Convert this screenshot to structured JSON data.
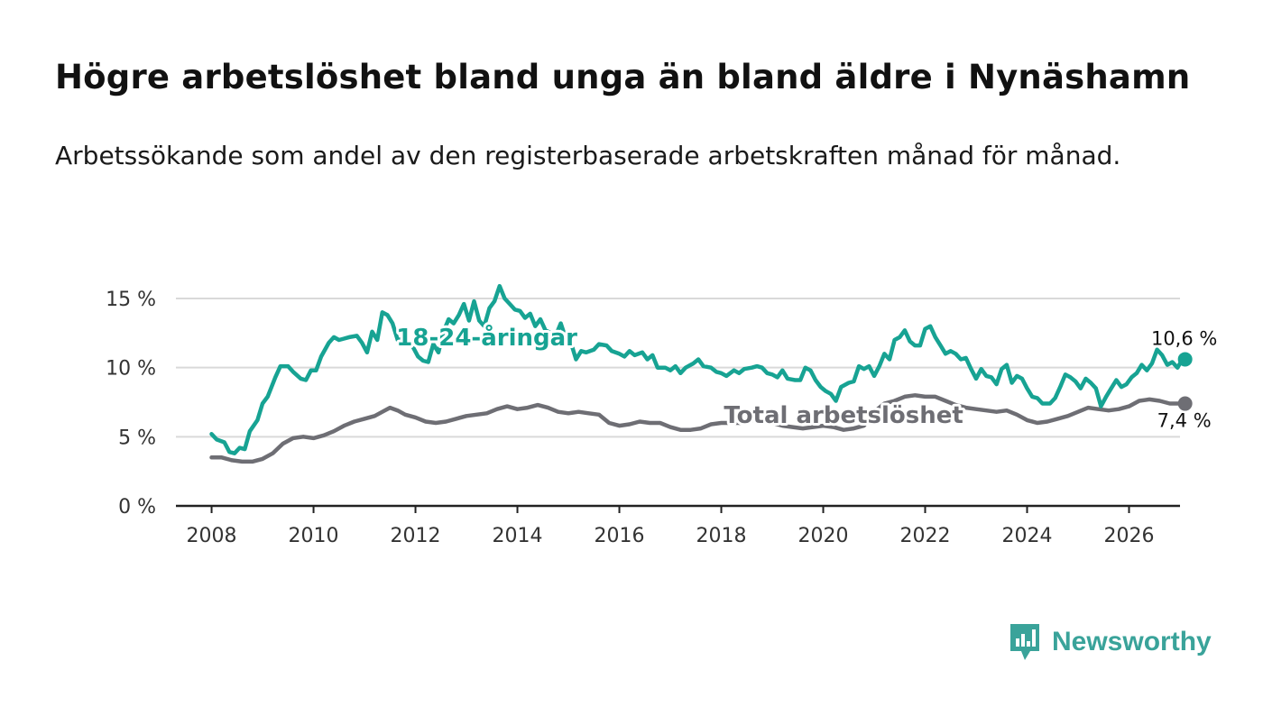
{
  "header": {
    "title": "Högre arbetslöshet bland unga än bland äldre i Nynäshamn",
    "subtitle": "Arbetssökande som andel av den registerbaserade arbetskraften månad för månad."
  },
  "brand": {
    "name": "Newsworthy",
    "icon": "newsworthy-logo-icon",
    "color": "#3aa39a"
  },
  "chart_data": {
    "type": "line",
    "title": "Högre arbetslöshet bland unga än bland äldre i Nynäshamn",
    "xlabel": "",
    "ylabel": "",
    "xlim": [
      2007.3,
      2027.0
    ],
    "ylim": [
      0,
      15
    ],
    "x_ticks": [
      2008,
      2010,
      2012,
      2014,
      2016,
      2018,
      2020,
      2022,
      2024,
      2026
    ],
    "x_tick_labels": [
      "2008",
      "2010",
      "2012",
      "2014",
      "2016",
      "2018",
      "2020",
      "2022",
      "2024",
      "2026"
    ],
    "y_ticks": [
      0,
      5,
      10,
      15
    ],
    "y_tick_labels": [
      "0 %",
      "5 %",
      "10 %",
      "15 %"
    ],
    "grid": true,
    "series": [
      {
        "name": "18-24-åringar",
        "color": "#17a393",
        "end_label": "10,6 %",
        "points": [
          [
            2008.0,
            5.2
          ],
          [
            2008.1,
            4.8
          ],
          [
            2008.25,
            4.6
          ],
          [
            2008.35,
            3.9
          ],
          [
            2008.45,
            3.8
          ],
          [
            2008.55,
            4.2
          ],
          [
            2008.65,
            4.1
          ],
          [
            2008.75,
            5.4
          ],
          [
            2008.9,
            6.2
          ],
          [
            2009.0,
            7.4
          ],
          [
            2009.1,
            7.9
          ],
          [
            2009.25,
            9.3
          ],
          [
            2009.35,
            10.1
          ],
          [
            2009.5,
            10.1
          ],
          [
            2009.6,
            9.7
          ],
          [
            2009.75,
            9.2
          ],
          [
            2009.85,
            9.1
          ],
          [
            2009.95,
            9.8
          ],
          [
            2010.05,
            9.8
          ],
          [
            2010.15,
            10.8
          ],
          [
            2010.3,
            11.8
          ],
          [
            2010.4,
            12.2
          ],
          [
            2010.5,
            12.0
          ],
          [
            2010.6,
            12.1
          ],
          [
            2010.7,
            12.2
          ],
          [
            2010.85,
            12.3
          ],
          [
            2010.95,
            11.8
          ],
          [
            2011.05,
            11.1
          ],
          [
            2011.15,
            12.6
          ],
          [
            2011.25,
            12.0
          ],
          [
            2011.35,
            14.0
          ],
          [
            2011.45,
            13.8
          ],
          [
            2011.55,
            13.2
          ],
          [
            2011.65,
            12.0
          ],
          [
            2011.8,
            12.1
          ],
          [
            2011.95,
            11.5
          ],
          [
            2012.05,
            10.8
          ],
          [
            2012.15,
            10.5
          ],
          [
            2012.25,
            10.4
          ],
          [
            2012.35,
            11.7
          ],
          [
            2012.45,
            11.1
          ],
          [
            2012.55,
            12.6
          ],
          [
            2012.65,
            13.5
          ],
          [
            2012.75,
            13.2
          ],
          [
            2012.85,
            13.8
          ],
          [
            2012.95,
            14.6
          ],
          [
            2013.05,
            13.4
          ],
          [
            2013.15,
            14.8
          ],
          [
            2013.25,
            13.4
          ],
          [
            2013.35,
            13.0
          ],
          [
            2013.45,
            14.3
          ],
          [
            2013.55,
            14.8
          ],
          [
            2013.65,
            15.9
          ],
          [
            2013.75,
            15.0
          ],
          [
            2013.85,
            14.6
          ],
          [
            2013.95,
            14.2
          ],
          [
            2014.05,
            14.1
          ],
          [
            2014.15,
            13.6
          ],
          [
            2014.25,
            13.9
          ],
          [
            2014.35,
            13.0
          ],
          [
            2014.45,
            13.5
          ],
          [
            2014.55,
            12.7
          ],
          [
            2014.65,
            12.5
          ],
          [
            2014.75,
            12.3
          ],
          [
            2014.85,
            13.2
          ],
          [
            2014.95,
            12.1
          ],
          [
            2015.05,
            11.8
          ],
          [
            2015.15,
            10.6
          ],
          [
            2015.25,
            11.2
          ],
          [
            2015.35,
            11.1
          ],
          [
            2015.5,
            11.3
          ],
          [
            2015.6,
            11.7
          ],
          [
            2015.75,
            11.6
          ],
          [
            2015.85,
            11.2
          ],
          [
            2016.0,
            11.0
          ],
          [
            2016.1,
            10.8
          ],
          [
            2016.2,
            11.2
          ],
          [
            2016.3,
            10.9
          ],
          [
            2016.45,
            11.1
          ],
          [
            2016.55,
            10.6
          ],
          [
            2016.65,
            10.9
          ],
          [
            2016.75,
            10.0
          ],
          [
            2016.9,
            10.0
          ],
          [
            2017.0,
            9.8
          ],
          [
            2017.1,
            10.1
          ],
          [
            2017.2,
            9.6
          ],
          [
            2017.3,
            10.0
          ],
          [
            2017.45,
            10.3
          ],
          [
            2017.55,
            10.6
          ],
          [
            2017.65,
            10.1
          ],
          [
            2017.8,
            10.0
          ],
          [
            2017.9,
            9.7
          ],
          [
            2018.0,
            9.6
          ],
          [
            2018.1,
            9.4
          ],
          [
            2018.25,
            9.8
          ],
          [
            2018.35,
            9.6
          ],
          [
            2018.45,
            9.9
          ],
          [
            2018.6,
            10.0
          ],
          [
            2018.7,
            10.1
          ],
          [
            2018.8,
            10.0
          ],
          [
            2018.9,
            9.6
          ],
          [
            2019.0,
            9.5
          ],
          [
            2019.1,
            9.3
          ],
          [
            2019.2,
            9.8
          ],
          [
            2019.3,
            9.2
          ],
          [
            2019.45,
            9.1
          ],
          [
            2019.55,
            9.1
          ],
          [
            2019.65,
            10.0
          ],
          [
            2019.75,
            9.8
          ],
          [
            2019.85,
            9.1
          ],
          [
            2019.95,
            8.6
          ],
          [
            2020.05,
            8.3
          ],
          [
            2020.15,
            8.1
          ],
          [
            2020.25,
            7.6
          ],
          [
            2020.35,
            8.6
          ],
          [
            2020.5,
            8.9
          ],
          [
            2020.6,
            9.0
          ],
          [
            2020.7,
            10.1
          ],
          [
            2020.8,
            9.9
          ],
          [
            2020.9,
            10.1
          ],
          [
            2021.0,
            9.4
          ],
          [
            2021.1,
            10.1
          ],
          [
            2021.2,
            11.0
          ],
          [
            2021.3,
            10.6
          ],
          [
            2021.4,
            12.0
          ],
          [
            2021.5,
            12.2
          ],
          [
            2021.6,
            12.7
          ],
          [
            2021.7,
            11.9
          ],
          [
            2021.8,
            11.6
          ],
          [
            2021.9,
            11.6
          ],
          [
            2022.0,
            12.8
          ],
          [
            2022.1,
            13.0
          ],
          [
            2022.2,
            12.2
          ],
          [
            2022.3,
            11.6
          ],
          [
            2022.4,
            11.0
          ],
          [
            2022.5,
            11.2
          ],
          [
            2022.6,
            11.0
          ],
          [
            2022.7,
            10.6
          ],
          [
            2022.8,
            10.7
          ],
          [
            2022.9,
            9.9
          ],
          [
            2023.0,
            9.2
          ],
          [
            2023.1,
            9.9
          ],
          [
            2023.2,
            9.4
          ],
          [
            2023.3,
            9.3
          ],
          [
            2023.4,
            8.8
          ],
          [
            2023.5,
            9.9
          ],
          [
            2023.6,
            10.2
          ],
          [
            2023.7,
            8.9
          ],
          [
            2023.8,
            9.4
          ],
          [
            2023.9,
            9.2
          ],
          [
            2024.0,
            8.5
          ],
          [
            2024.1,
            7.9
          ],
          [
            2024.2,
            7.8
          ],
          [
            2024.3,
            7.4
          ],
          [
            2024.45,
            7.4
          ],
          [
            2024.55,
            7.8
          ],
          [
            2024.65,
            8.6
          ],
          [
            2024.75,
            9.5
          ],
          [
            2024.85,
            9.3
          ],
          [
            2024.95,
            9.0
          ],
          [
            2025.05,
            8.5
          ],
          [
            2025.15,
            9.2
          ],
          [
            2025.25,
            8.9
          ],
          [
            2025.35,
            8.5
          ],
          [
            2025.45,
            7.2
          ],
          [
            2025.55,
            7.9
          ],
          [
            2025.65,
            8.5
          ],
          [
            2025.75,
            9.1
          ],
          [
            2025.85,
            8.6
          ],
          [
            2025.95,
            8.8
          ],
          [
            2026.05,
            9.3
          ],
          [
            2026.15,
            9.6
          ],
          [
            2026.25,
            10.2
          ],
          [
            2026.35,
            9.8
          ],
          [
            2026.45,
            10.3
          ],
          [
            2026.55,
            11.3
          ],
          [
            2026.65,
            10.9
          ],
          [
            2026.75,
            10.2
          ],
          [
            2026.85,
            10.4
          ],
          [
            2026.95,
            10.0
          ],
          [
            2027.05,
            10.6
          ],
          [
            2027.1,
            10.6
          ]
        ]
      },
      {
        "name": "Total arbetslöshet",
        "color": "#6e6e74",
        "end_label": "7,4 %",
        "points": [
          [
            2008.0,
            3.5
          ],
          [
            2008.2,
            3.5
          ],
          [
            2008.4,
            3.3
          ],
          [
            2008.6,
            3.2
          ],
          [
            2008.8,
            3.2
          ],
          [
            2009.0,
            3.4
          ],
          [
            2009.2,
            3.8
          ],
          [
            2009.4,
            4.5
          ],
          [
            2009.6,
            4.9
          ],
          [
            2009.8,
            5.0
          ],
          [
            2010.0,
            4.9
          ],
          [
            2010.2,
            5.1
          ],
          [
            2010.4,
            5.4
          ],
          [
            2010.6,
            5.8
          ],
          [
            2010.8,
            6.1
          ],
          [
            2011.0,
            6.3
          ],
          [
            2011.2,
            6.5
          ],
          [
            2011.35,
            6.8
          ],
          [
            2011.5,
            7.1
          ],
          [
            2011.65,
            6.9
          ],
          [
            2011.8,
            6.6
          ],
          [
            2012.0,
            6.4
          ],
          [
            2012.2,
            6.1
          ],
          [
            2012.4,
            6.0
          ],
          [
            2012.6,
            6.1
          ],
          [
            2012.8,
            6.3
          ],
          [
            2013.0,
            6.5
          ],
          [
            2013.2,
            6.6
          ],
          [
            2013.4,
            6.7
          ],
          [
            2013.6,
            7.0
          ],
          [
            2013.8,
            7.2
          ],
          [
            2014.0,
            7.0
          ],
          [
            2014.2,
            7.1
          ],
          [
            2014.4,
            7.3
          ],
          [
            2014.6,
            7.1
          ],
          [
            2014.8,
            6.8
          ],
          [
            2015.0,
            6.7
          ],
          [
            2015.2,
            6.8
          ],
          [
            2015.4,
            6.7
          ],
          [
            2015.6,
            6.6
          ],
          [
            2015.8,
            6.0
          ],
          [
            2016.0,
            5.8
          ],
          [
            2016.2,
            5.9
          ],
          [
            2016.4,
            6.1
          ],
          [
            2016.6,
            6.0
          ],
          [
            2016.8,
            6.0
          ],
          [
            2017.0,
            5.7
          ],
          [
            2017.2,
            5.5
          ],
          [
            2017.4,
            5.5
          ],
          [
            2017.6,
            5.6
          ],
          [
            2017.8,
            5.9
          ],
          [
            2018.0,
            6.0
          ],
          [
            2018.2,
            6.0
          ],
          [
            2018.4,
            6.0
          ],
          [
            2018.6,
            6.2
          ],
          [
            2018.8,
            6.2
          ],
          [
            2019.0,
            6.0
          ],
          [
            2019.2,
            5.8
          ],
          [
            2019.4,
            5.7
          ],
          [
            2019.6,
            5.6
          ],
          [
            2019.8,
            5.7
          ],
          [
            2020.0,
            5.8
          ],
          [
            2020.2,
            5.7
          ],
          [
            2020.4,
            5.5
          ],
          [
            2020.6,
            5.6
          ],
          [
            2020.8,
            5.8
          ],
          [
            2021.0,
            6.8
          ],
          [
            2021.2,
            7.4
          ],
          [
            2021.4,
            7.6
          ],
          [
            2021.6,
            7.9
          ],
          [
            2021.8,
            8.0
          ],
          [
            2022.0,
            7.9
          ],
          [
            2022.2,
            7.9
          ],
          [
            2022.4,
            7.6
          ],
          [
            2022.6,
            7.3
          ],
          [
            2022.8,
            7.1
          ],
          [
            2023.0,
            7.0
          ],
          [
            2023.2,
            6.9
          ],
          [
            2023.4,
            6.8
          ],
          [
            2023.6,
            6.9
          ],
          [
            2023.8,
            6.6
          ],
          [
            2024.0,
            6.2
          ],
          [
            2024.2,
            6.0
          ],
          [
            2024.4,
            6.1
          ],
          [
            2024.6,
            6.3
          ],
          [
            2024.8,
            6.5
          ],
          [
            2025.0,
            6.8
          ],
          [
            2025.2,
            7.1
          ],
          [
            2025.4,
            7.0
          ],
          [
            2025.6,
            6.9
          ],
          [
            2025.8,
            7.0
          ],
          [
            2026.0,
            7.2
          ],
          [
            2026.2,
            7.6
          ],
          [
            2026.4,
            7.7
          ],
          [
            2026.6,
            7.6
          ],
          [
            2026.8,
            7.4
          ],
          [
            2027.0,
            7.4
          ],
          [
            2027.1,
            7.4
          ]
        ]
      }
    ],
    "annotations": [
      {
        "text": "18-24-åringar",
        "series": 0,
        "x": 2013.4,
        "y": 12.2
      },
      {
        "text": "Total arbetslöshet",
        "series": 1,
        "x": 2020.4,
        "y": 6.6
      }
    ]
  }
}
